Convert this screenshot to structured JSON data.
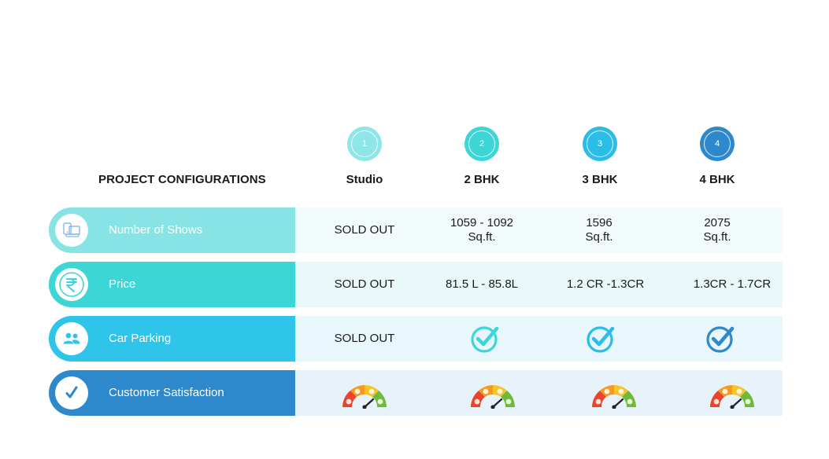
{
  "heading": "PROJECT CONFIGURATIONS",
  "columns": [
    {
      "num": "1",
      "title": "Studio",
      "color": "#8ee6e6"
    },
    {
      "num": "2",
      "title": "2 BHK",
      "color": "#3dd6d6"
    },
    {
      "num": "3",
      "title": "3 BHK",
      "color": "#2bbce8"
    },
    {
      "num": "4",
      "title": "4 BHK",
      "color": "#2e88cc"
    }
  ],
  "rows": [
    {
      "label": "Number of Shows",
      "icon": "devices-icon",
      "color": "#88e4e4",
      "bg": "#f2fbfb",
      "cells": [
        {
          "l1": "SOLD OUT",
          "l2": ""
        },
        {
          "l1": "1059 - 1092",
          "l2": "Sq.ft."
        },
        {
          "l1": "1596",
          "l2": "Sq.ft."
        },
        {
          "l1": "2075",
          "l2": "Sq.ft."
        }
      ]
    },
    {
      "label": "Price",
      "icon": "rupee-icon",
      "color": "#3dd6d6",
      "bg": "#e9f8f8",
      "cells": [
        {
          "l1": "SOLD OUT"
        },
        {
          "l1": "81.5 L - 85.8L"
        },
        {
          "l1": "1.2 CR -1.3CR"
        },
        {
          "l1": "1.3CR - 1.7CR"
        }
      ]
    },
    {
      "label": "Car Parking",
      "icon": "people-icon",
      "color": "#2fc4ea",
      "bg": "#e8f7fc",
      "cells": [
        {
          "l1": "SOLD OUT"
        }
      ],
      "check_colors": [
        "#3dd6d6",
        "#2bbce8",
        "#2e88cc"
      ]
    },
    {
      "label": "Customer Satisfaction",
      "icon": "checkmark-icon",
      "color": "#2e88cc",
      "bg": "#e7f2fa"
    }
  ]
}
